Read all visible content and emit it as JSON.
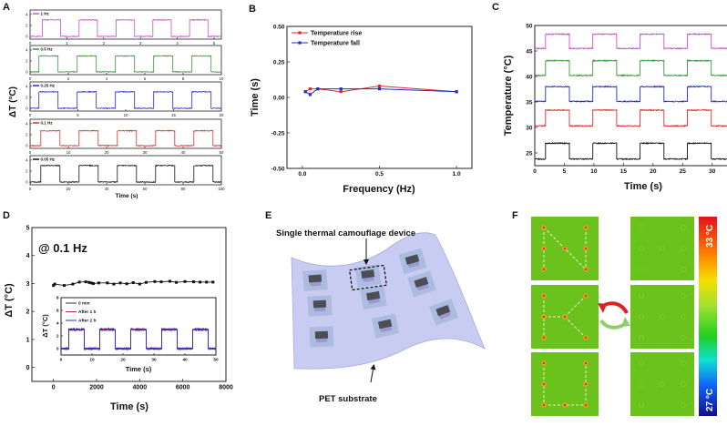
{
  "panel_labels": {
    "A": "A",
    "B": "B",
    "C": "C",
    "D": "D",
    "E": "E",
    "F": "F"
  },
  "chart_data": [
    {
      "id": "A",
      "type": "line",
      "xlabel": "Time (s)",
      "ylabel": "ΔT (°C)",
      "subplots": [
        {
          "legend": "1 Hz",
          "color": "#d24ccf",
          "xlim": [
            0,
            5.2
          ],
          "ylim": [
            -0.5,
            4.8
          ],
          "xticks": [
            0,
            1,
            2,
            3,
            4,
            5
          ],
          "xtick_labels": [
            "0",
            "1",
            "2",
            "3",
            "4",
            "5"
          ],
          "yticks": [
            0,
            2,
            4
          ],
          "ytick_labels": [
            "0",
            "2",
            "4"
          ],
          "period_s": 1,
          "pulse_start_s": 0.33,
          "pulse_width_s": 0.5,
          "low": 0,
          "high": 3
        },
        {
          "legend": "0.5 Hz",
          "color": "#3a963a",
          "xlim": [
            0,
            10
          ],
          "ylim": [
            -0.5,
            4.8
          ],
          "xticks": [
            0,
            2,
            4,
            6,
            8,
            10
          ],
          "xtick_labels": [
            "0",
            "2",
            "4",
            "6",
            "8",
            "10"
          ],
          "yticks": [
            0,
            2,
            4
          ],
          "ytick_labels": [
            "0",
            "2",
            "4"
          ],
          "period_s": 2,
          "pulse_start_s": 0.45,
          "pulse_width_s": 1,
          "low": 0,
          "high": 2.9
        },
        {
          "legend": "0.25 Hz",
          "color": "#2a2ac4",
          "xlim": [
            0,
            20
          ],
          "ylim": [
            -0.5,
            4.8
          ],
          "xticks": [
            0,
            5,
            10,
            15,
            20
          ],
          "xtick_labels": [
            "0",
            "5",
            "10",
            "15",
            "20"
          ],
          "yticks": [
            0,
            2,
            4
          ],
          "ytick_labels": [
            "0",
            "2",
            "4"
          ],
          "period_s": 4,
          "pulse_start_s": 0.9,
          "pulse_width_s": 2,
          "low": 0,
          "high": 3
        },
        {
          "legend": "0.1 Hz",
          "color": "#dd2e2e",
          "xlim": [
            0,
            50
          ],
          "ylim": [
            -0.5,
            4.8
          ],
          "xticks": [
            0,
            10,
            20,
            30,
            40,
            50
          ],
          "xtick_labels": [
            "0",
            "10",
            "20",
            "30",
            "40",
            "50"
          ],
          "yticks": [
            0,
            2,
            4
          ],
          "ytick_labels": [
            "0",
            "2",
            "4"
          ],
          "period_s": 10,
          "pulse_start_s": 2.8,
          "pulse_width_s": 5,
          "low": 0,
          "high": 2.7
        },
        {
          "legend": "0.05 Hz",
          "color": "#111111",
          "xlim": [
            0,
            100
          ],
          "ylim": [
            -0.5,
            4.8
          ],
          "xticks": [
            0,
            20,
            40,
            60,
            80,
            100
          ],
          "xtick_labels": [
            "0",
            "20",
            "40",
            "60",
            "80",
            "100"
          ],
          "yticks": [
            0,
            2,
            4
          ],
          "ytick_labels": [
            "0",
            "2",
            "4"
          ],
          "period_s": 20,
          "pulse_start_s": 5.5,
          "pulse_width_s": 10,
          "low": 0,
          "high": 3
        }
      ]
    },
    {
      "id": "B",
      "type": "line",
      "xlabel": "Frequency (Hz)",
      "ylabel": "Time (s)",
      "xlim": [
        -0.1,
        1.1
      ],
      "ylim": [
        -0.5,
        0.5
      ],
      "xticks": [
        0,
        0.5,
        1.0
      ],
      "xtick_labels": [
        "0.0",
        "0.5",
        "1.0"
      ],
      "yticks": [
        -0.5,
        -0.25,
        0,
        0.25,
        0.5
      ],
      "ytick_labels": [
        "-0.50",
        "-0.25",
        "0.00",
        "0.25",
        "0.50"
      ],
      "legend_position": "top-left",
      "series": [
        {
          "name": "Temperature rise",
          "color": "#e02a2a",
          "x": [
            0.02,
            0.05,
            0.1,
            0.25,
            0.5,
            1.0
          ],
          "y": [
            0.04,
            0.06,
            0.06,
            0.04,
            0.08,
            0.04
          ]
        },
        {
          "name": "Temperature fall",
          "color": "#1f2fc8",
          "x": [
            0.02,
            0.05,
            0.1,
            0.25,
            0.5,
            1.0
          ],
          "y": [
            0.04,
            0.02,
            0.06,
            0.06,
            0.06,
            0.04
          ]
        }
      ]
    },
    {
      "id": "C",
      "type": "line",
      "xlabel": "Time (s)",
      "ylabel": "Temperature (°C)",
      "xlim": [
        0,
        32.5
      ],
      "ylim": [
        22.5,
        50
      ],
      "xticks": [
        0,
        5,
        10,
        15,
        20,
        25,
        30
      ],
      "xtick_labels": [
        "0",
        "5",
        "10",
        "15",
        "20",
        "25",
        "30"
      ],
      "yticks": [
        25,
        30,
        35,
        40,
        45,
        50
      ],
      "ytick_labels": [
        "25",
        "30",
        "35",
        "40",
        "45",
        "50"
      ],
      "period_s": 8,
      "pulse_start_s": 1.8,
      "pulse_width_s": 4,
      "series": [
        {
          "color": "#d24ccf",
          "low": 45.5,
          "high": 48.3
        },
        {
          "color": "#3a963a",
          "low": 40.2,
          "high": 43.1
        },
        {
          "color": "#2a2ac4",
          "low": 35.1,
          "high": 38.0
        },
        {
          "color": "#dd2e2e",
          "low": 30.3,
          "high": 33.4
        },
        {
          "color": "#111111",
          "low": 23.8,
          "high": 26.9
        }
      ]
    },
    {
      "id": "D",
      "type": "scatter",
      "annotation": "@ 0.1 Hz",
      "xlabel": "Time (s)",
      "ylabel": "ΔT (°C)",
      "xlim": [
        -1000,
        8000
      ],
      "ylim": [
        -0.5,
        5
      ],
      "xticks": [
        0,
        2000,
        4000,
        6000,
        8000
      ],
      "xtick_labels": [
        "0",
        "2000",
        "4000",
        "6000",
        "8000"
      ],
      "yticks": [
        0,
        1,
        2,
        3,
        4,
        5
      ],
      "ytick_labels": [
        "0",
        "1",
        "2",
        "3",
        "4",
        "5"
      ],
      "x": [
        0,
        60,
        500,
        900,
        1200,
        1500,
        1650,
        1750,
        1850,
        2100,
        2500,
        2800,
        3100,
        3400,
        3700,
        4000,
        4300,
        4700,
        5000,
        5400,
        5700,
        6100,
        6500,
        6800,
        7100,
        7400
      ],
      "y": [
        2.93,
        2.98,
        2.93,
        2.98,
        3.05,
        3.06,
        3.04,
        3.02,
        3.0,
        3.02,
        3.02,
        2.98,
        3.02,
        2.99,
        3.03,
        2.98,
        3.04,
        3.07,
        3.06,
        3.08,
        3.04,
        3.07,
        3.06,
        3.05,
        3.05,
        3.05
      ],
      "inset": {
        "type": "line",
        "xlabel": "Time (s)",
        "ylabel": "ΔT (°C)",
        "xlim": [
          0,
          50
        ],
        "ylim": [
          -1,
          8
        ],
        "xticks": [
          0,
          10,
          20,
          30,
          40,
          50
        ],
        "xtick_labels": [
          "0",
          "10",
          "20",
          "30",
          "40",
          "50"
        ],
        "yticks": [
          0,
          2,
          4,
          6,
          8
        ],
        "ytick_labels": [
          "0",
          "2",
          "4",
          "6",
          "8"
        ],
        "period_s": 10,
        "pulse_start_s": 2.5,
        "pulse_width_s": 5,
        "series": [
          {
            "name": "0 min",
            "color": "#333333",
            "low": 0,
            "high": 3
          },
          {
            "name": "After 1 h",
            "color": "#c0304a",
            "low": 0,
            "high": 2.95
          },
          {
            "name": "After 2 h",
            "color": "#2a2ad0",
            "low": 0,
            "high": 3.05
          }
        ]
      }
    }
  ],
  "panel_e": {
    "device_label": "Single thermal camouflage device",
    "substrate_label": "PET substrate"
  },
  "panel_f": {
    "colorbar_max": "33 °C",
    "colorbar_min": "27 °C",
    "swap_arrow_colors": [
      "#e02020",
      "#8fcf6a"
    ]
  }
}
